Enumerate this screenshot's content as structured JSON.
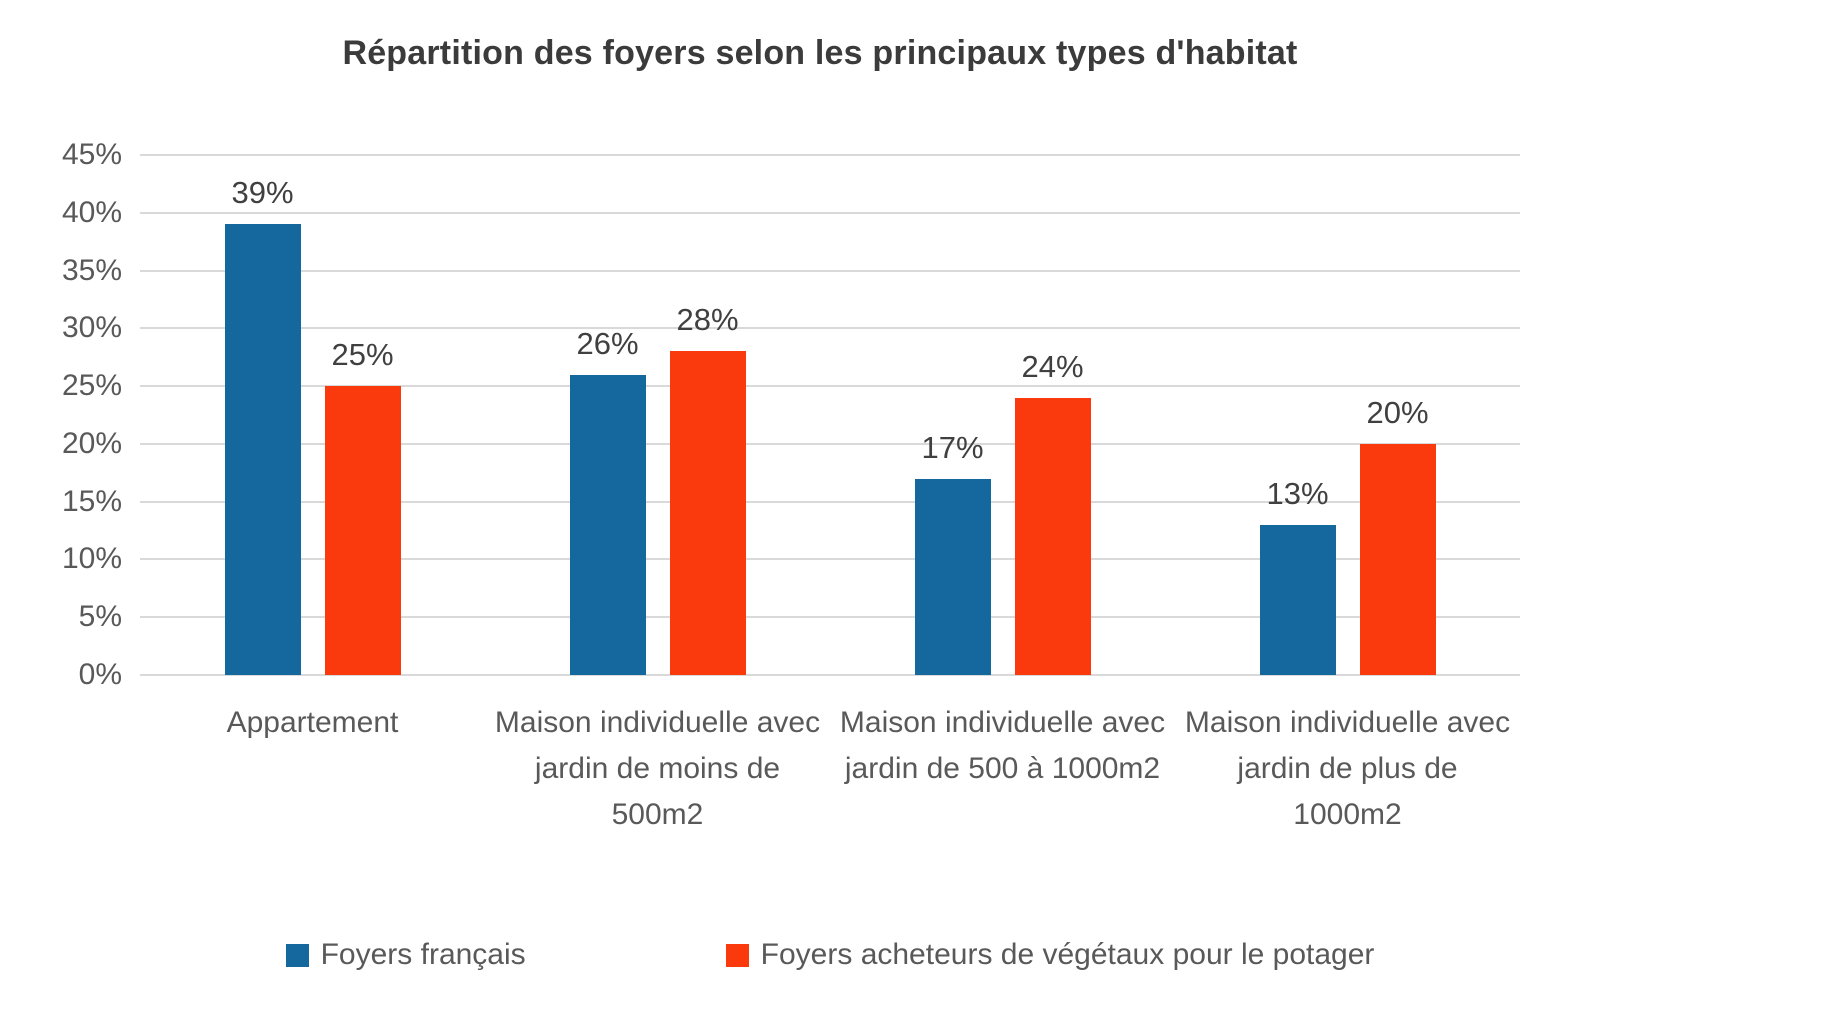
{
  "title": "Répartition des foyers selon les principaux types d'habitat",
  "colors": {
    "series_blue": "#15689E",
    "series_red": "#FA3A0D",
    "gridline": "#D9D9D9",
    "title_text": "#3B3B3B",
    "axis_text": "#595959",
    "data_label_text": "#404040"
  },
  "chart_data": {
    "type": "bar",
    "title": "Répartition des foyers selon les principaux types d'habitat",
    "categories": [
      "Appartement",
      "Maison individuelle avec jardin de moins de 500m2",
      "Maison individuelle avec jardin de 500 à 1000m2",
      "Maison individuelle avec jardin de plus de 1000m2"
    ],
    "series": [
      {
        "name": "Foyers français",
        "color": "#15689E",
        "values": [
          39,
          26,
          17,
          13
        ],
        "data_labels": [
          "39%",
          "26%",
          "17%",
          "13%"
        ]
      },
      {
        "name": "Foyers acheteurs de végétaux pour le potager",
        "color": "#FA3A0D",
        "values": [
          25,
          28,
          24,
          20
        ],
        "data_labels": [
          "25%",
          "28%",
          "24%",
          "20%"
        ]
      }
    ],
    "xlabel": "",
    "ylabel": "",
    "ylim": [
      0,
      45
    ],
    "y_tick_step": 5,
    "y_tick_labels": [
      "0%",
      "5%",
      "10%",
      "15%",
      "20%",
      "25%",
      "30%",
      "35%",
      "40%",
      "45%"
    ],
    "grid": true,
    "legend_position": "bottom"
  }
}
